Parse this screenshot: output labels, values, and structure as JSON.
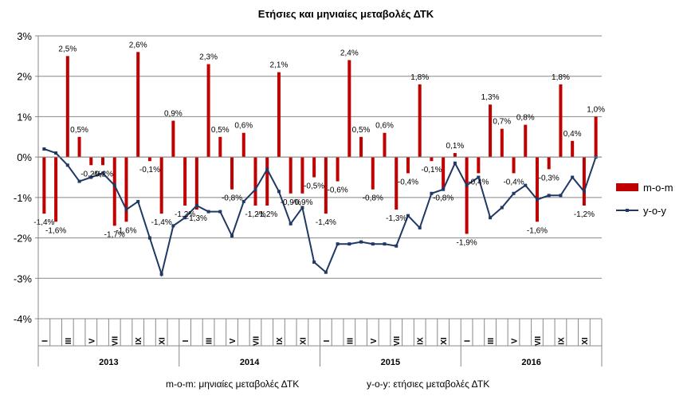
{
  "chart_data": {
    "type": "bar",
    "title": "Ετήσιες και μηνιαίες μεταβολές ΔΤΚ",
    "footnotes": [
      "m-o-m: μηνιαίες μεταβολές ΔΤΚ",
      "y-o-y: ετήσιες μεταβολές ΔΤΚ"
    ],
    "ylim": [
      -4,
      3
    ],
    "ytick_step": 1,
    "yticks": [
      "3%",
      "2%",
      "1%",
      "0%",
      "-1%",
      "-2%",
      "-3%",
      "-4%"
    ],
    "grid": true,
    "legend_position": "right",
    "years": [
      "2013",
      "2014",
      "2015",
      "2016"
    ],
    "month_tick_labels": [
      "I",
      "",
      "III",
      "",
      "V",
      "",
      "VII",
      "",
      "IX",
      "",
      "XI",
      ""
    ],
    "series": [
      {
        "name": "m-o-m",
        "kind": "bar",
        "color": "#C00000",
        "values": [
          -1.4,
          -1.6,
          2.5,
          0.5,
          -0.2,
          -0.2,
          -1.7,
          -1.6,
          2.6,
          -0.1,
          -1.4,
          0.9,
          -1.2,
          -1.3,
          2.3,
          0.5,
          -0.8,
          0.6,
          -1.2,
          -1.2,
          2.1,
          -0.9,
          -0.9,
          -0.5,
          -1.4,
          -0.6,
          2.4,
          0.5,
          -0.8,
          0.6,
          -1.3,
          -0.4,
          1.8,
          -0.1,
          -0.8,
          0.1,
          -1.9,
          -0.4,
          1.3,
          0.7,
          -0.4,
          0.8,
          -1.6,
          -0.3,
          1.8,
          0.4,
          -1.2,
          1.0
        ],
        "labels": [
          "-1,4%",
          "-1,6%",
          "2,5%",
          "0,5%",
          "-0,2%",
          "-0,2%",
          "-1,7%",
          "-1,6%",
          "2,6%",
          "-0,1%",
          "-1,4%",
          "0,9%",
          "-1,2%",
          "-1,3%",
          "2,3%",
          "0,5%",
          "-0,8%",
          "0,6%",
          "-1,2%",
          "-1,2%",
          "2,1%",
          "-0,9%",
          "-0,9%",
          "-0,5%",
          "-1,4%",
          "-0,6%",
          "2,4%",
          "0,5%",
          "-0,8%",
          "0,6%",
          "-1,3%",
          "-0,4%",
          "1,8%",
          "-0,1%",
          "-0,8%",
          "0,1%",
          "-1,9%",
          "-0,4%",
          "1,3%",
          "0,7%",
          "-0,4%",
          "0,8%",
          "-1,6%",
          "-0,3%",
          "1,8%",
          "0,4%",
          "-1,2%",
          "1,0%"
        ]
      },
      {
        "name": "y-o-y",
        "kind": "line",
        "color": "#1F3864",
        "values": [
          0.2,
          0.1,
          -0.2,
          -0.6,
          -0.5,
          -0.4,
          -0.7,
          -1.3,
          -1.1,
          -2.0,
          -2.9,
          -1.7,
          -1.5,
          -1.2,
          -1.35,
          -1.35,
          -1.95,
          -1.1,
          -0.8,
          -0.3,
          -0.85,
          -1.65,
          -1.25,
          -2.6,
          -2.85,
          -2.15,
          -2.15,
          -2.1,
          -2.15,
          -2.15,
          -2.2,
          -1.45,
          -1.75,
          -0.9,
          -0.8,
          -0.15,
          -0.7,
          -0.5,
          -1.5,
          -1.25,
          -0.9,
          -0.7,
          -1.05,
          -0.95,
          -0.95,
          -0.5,
          -0.85,
          0.0
        ]
      }
    ]
  }
}
